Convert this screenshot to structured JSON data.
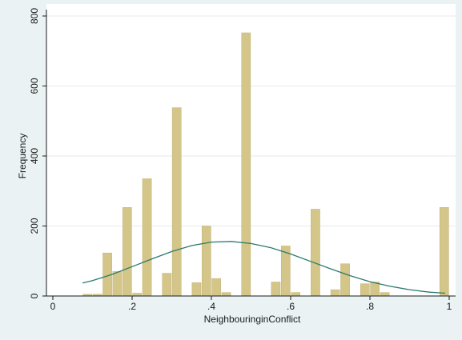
{
  "chart_data": {
    "type": "bar",
    "title": "",
    "xlabel": "NeighbouringinConflict",
    "ylabel": "Frequency",
    "xlim": [
      0,
      1
    ],
    "ylim": [
      0,
      800
    ],
    "x_ticks": [
      0,
      0.2,
      0.4,
      0.6,
      0.8,
      1
    ],
    "x_tick_labels": [
      "0",
      ".2",
      ".4",
      ".6",
      ".8",
      "1"
    ],
    "y_ticks": [
      0,
      200,
      400,
      600,
      800
    ],
    "y_tick_labels": [
      "0",
      "200",
      "400",
      "600",
      "800"
    ],
    "grid": "horizontal",
    "legend": "none",
    "bin_width": 0.025,
    "bars": [
      {
        "x": 0.075,
        "value": 5
      },
      {
        "x": 0.1,
        "value": 5
      },
      {
        "x": 0.125,
        "value": 123
      },
      {
        "x": 0.15,
        "value": 70
      },
      {
        "x": 0.175,
        "value": 253
      },
      {
        "x": 0.2,
        "value": 8
      },
      {
        "x": 0.225,
        "value": 335
      },
      {
        "x": 0.275,
        "value": 65
      },
      {
        "x": 0.3,
        "value": 538
      },
      {
        "x": 0.35,
        "value": 38
      },
      {
        "x": 0.375,
        "value": 200
      },
      {
        "x": 0.4,
        "value": 50
      },
      {
        "x": 0.425,
        "value": 10
      },
      {
        "x": 0.475,
        "value": 752
      },
      {
        "x": 0.55,
        "value": 40
      },
      {
        "x": 0.575,
        "value": 143
      },
      {
        "x": 0.6,
        "value": 10
      },
      {
        "x": 0.65,
        "value": 248
      },
      {
        "x": 0.7,
        "value": 18
      },
      {
        "x": 0.725,
        "value": 92
      },
      {
        "x": 0.775,
        "value": 35
      },
      {
        "x": 0.8,
        "value": 40
      },
      {
        "x": 0.825,
        "value": 10
      },
      {
        "x": 0.975,
        "value": 253
      }
    ],
    "normal_curve": {
      "x": [
        0.075,
        0.1,
        0.15,
        0.2,
        0.25,
        0.3,
        0.35,
        0.4,
        0.45,
        0.5,
        0.55,
        0.6,
        0.65,
        0.7,
        0.75,
        0.8,
        0.85,
        0.9,
        0.95,
        0.99
      ],
      "y": [
        37,
        44,
        62,
        84,
        106,
        127,
        144,
        154,
        156,
        150,
        138,
        120,
        99,
        78,
        58,
        41,
        28,
        18,
        11,
        8
      ]
    },
    "colors": {
      "background": "#eaf2f3",
      "plot_area": "#ffffff",
      "bar_fill": "#d4c589",
      "bar_edge": "#c2b276",
      "curve": "#2a7a6e",
      "grid": "#e6eaed",
      "axis": "#1a1a1a"
    }
  }
}
